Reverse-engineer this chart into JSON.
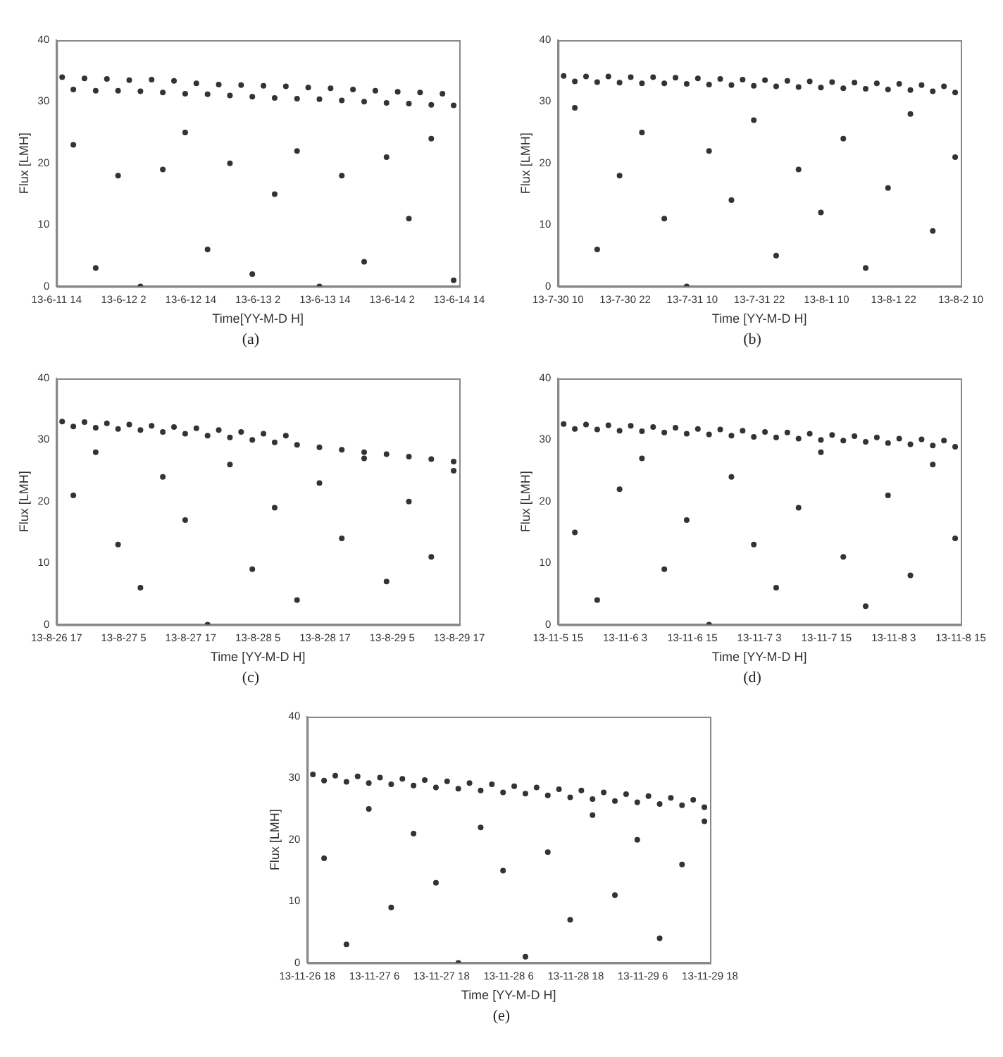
{
  "chart_data": [
    {
      "type": "scatter",
      "xlabel": "Time[YY-M-D H]",
      "ylabel": "Flux [LMH]",
      "annotations": [
        "(a)"
      ],
      "marker": "circle",
      "xlim": [
        "--06-11T14:00",
        "--06-14T14:00"
      ],
      "xticks": [
        {
          "value": "--06-11T14:00",
          "label": "13-6-11 14"
        },
        {
          "value": "--06-12T02:00",
          "label": "13-6-12 2"
        },
        {
          "value": "--06-12T14:00",
          "label": "13-6-12 14"
        },
        {
          "value": "--06-13T02:00",
          "label": "13-6-13 2"
        },
        {
          "value": "--06-13T14:00",
          "label": "13-6-13 14"
        },
        {
          "value": "--06-14T02:00",
          "label": "13-6-14 2"
        },
        {
          "value": "--06-14T14:00",
          "label": "13-6-14 14"
        }
      ],
      "ylim": [
        0,
        40
      ],
      "yticks": [
        0,
        10,
        20,
        30,
        40
      ],
      "series": [
        {
          "color": "#333333",
          "x": [
            "--06-11T15:00",
            "--06-11T19:00",
            "--06-11T23:00",
            "--06-12T03:00",
            "--06-12T07:00",
            "--06-12T11:00",
            "--06-12T15:00",
            "--06-12T19:00",
            "--06-12T23:00",
            "--06-13T03:00",
            "--06-13T07:00",
            "--06-13T11:00",
            "--06-13T15:00",
            "--06-13T19:00",
            "--06-13T23:00",
            "--06-14T03:00",
            "--06-14T07:00",
            "--06-14T11:00"
          ],
          "values": [
            34,
            33.8,
            33.7,
            33.5,
            33.6,
            33.4,
            33,
            32.8,
            32.7,
            32.6,
            32.5,
            32.3,
            32.2,
            32,
            31.8,
            31.6,
            31.5,
            31.3
          ]
        },
        {
          "color": "#333333",
          "x": [
            "--06-11T17:00",
            "--06-11T21:00",
            "--06-12T01:00",
            "--06-12T05:00",
            "--06-12T09:00",
            "--06-12T13:00",
            "--06-12T17:00",
            "--06-12T21:00",
            "--06-13T01:00",
            "--06-13T05:00",
            "--06-13T09:00",
            "--06-13T13:00",
            "--06-13T17:00",
            "--06-13T21:00",
            "--06-14T01:00",
            "--06-14T05:00",
            "--06-14T09:00",
            "--06-14T13:00"
          ],
          "values": [
            32,
            31.8,
            31.8,
            31.7,
            31.5,
            31.3,
            31.2,
            31,
            30.8,
            30.6,
            30.5,
            30.4,
            30.2,
            30,
            29.8,
            29.7,
            29.5,
            29.4
          ]
        },
        {
          "color": "#333333",
          "x": [
            "--06-11T17:00",
            "--06-11T21:00",
            "--06-12T01:00",
            "--06-12T05:00",
            "--06-12T09:00",
            "--06-12T13:00",
            "--06-12T17:00",
            "--06-12T21:00",
            "--06-13T01:00",
            "--06-13T05:00",
            "--06-13T09:00",
            "--06-13T13:00",
            "--06-13T17:00",
            "--06-13T21:00",
            "--06-14T01:00",
            "--06-14T05:00",
            "--06-14T09:00",
            "--06-14T13:00"
          ],
          "values": [
            23,
            3,
            18,
            0,
            19,
            25,
            6,
            20,
            2,
            15,
            22,
            0,
            18,
            4,
            21,
            11,
            24,
            1
          ]
        }
      ]
    },
    {
      "type": "scatter",
      "xlabel": "Time [YY-M-D H]",
      "ylabel": "Flux [LMH]",
      "annotations": [
        "(b)"
      ],
      "marker": "circle",
      "xlim": [
        "--07-30T10:00",
        "--08-02T10:00"
      ],
      "xticks": [
        {
          "value": "--07-30T10:00",
          "label": "13-7-30 10"
        },
        {
          "value": "--07-30T22:00",
          "label": "13-7-30 22"
        },
        {
          "value": "--07-31T10:00",
          "label": "13-7-31 10"
        },
        {
          "value": "--07-31T22:00",
          "label": "13-7-31 22"
        },
        {
          "value": "--08-01T10:00",
          "label": "13-8-1 10"
        },
        {
          "value": "--08-01T22:00",
          "label": "13-8-1 22"
        },
        {
          "value": "--08-02T10:00",
          "label": "13-8-2 10"
        }
      ],
      "ylim": [
        0,
        40
      ],
      "yticks": [
        0,
        10,
        20,
        30,
        40
      ],
      "series": [
        {
          "color": "#333333",
          "x": [
            "--07-30T11:00",
            "--07-30T15:00",
            "--07-30T19:00",
            "--07-30T23:00",
            "--07-31T03:00",
            "--07-31T07:00",
            "--07-31T11:00",
            "--07-31T15:00",
            "--07-31T19:00",
            "--07-31T23:00",
            "--08-01T03:00",
            "--08-01T07:00",
            "--08-01T11:00",
            "--08-01T15:00",
            "--08-01T19:00",
            "--08-01T23:00",
            "--08-02T03:00",
            "--08-02T07:00"
          ],
          "values": [
            34.2,
            34.1,
            34.1,
            34,
            34,
            33.9,
            33.8,
            33.7,
            33.6,
            33.5,
            33.4,
            33.3,
            33.2,
            33.1,
            33,
            32.9,
            32.7,
            32.5
          ]
        },
        {
          "color": "#333333",
          "x": [
            "--07-30T13:00",
            "--07-30T17:00",
            "--07-30T21:00",
            "--07-31T01:00",
            "--07-31T05:00",
            "--07-31T09:00",
            "--07-31T13:00",
            "--07-31T17:00",
            "--07-31T21:00",
            "--08-01T01:00",
            "--08-01T05:00",
            "--08-01T09:00",
            "--08-01T13:00",
            "--08-01T17:00",
            "--08-01T21:00",
            "--08-02T01:00",
            "--08-02T05:00",
            "--08-02T09:00"
          ],
          "values": [
            33.3,
            33.2,
            33.1,
            33,
            33,
            32.9,
            32.8,
            32.7,
            32.6,
            32.5,
            32.4,
            32.3,
            32.2,
            32.1,
            32,
            31.9,
            31.7,
            31.5
          ]
        },
        {
          "color": "#333333",
          "x": [
            "--07-30T13:00",
            "--07-30T17:00",
            "--07-30T21:00",
            "--07-31T01:00",
            "--07-31T05:00",
            "--07-31T09:00",
            "--07-31T13:00",
            "--07-31T17:00",
            "--07-31T21:00",
            "--08-01T01:00",
            "--08-01T05:00",
            "--08-01T09:00",
            "--08-01T13:00",
            "--08-01T17:00",
            "--08-01T21:00",
            "--08-02T01:00",
            "--08-02T05:00",
            "--08-02T09:00"
          ],
          "values": [
            29,
            6,
            18,
            25,
            11,
            0,
            22,
            14,
            27,
            5,
            19,
            12,
            24,
            3,
            16,
            28,
            9,
            21
          ]
        }
      ]
    },
    {
      "type": "scatter",
      "xlabel": "Time [YY-M-D H]",
      "ylabel": "Flux [LMH]",
      "annotations": [
        "(c)"
      ],
      "marker": "circle",
      "xlim": [
        "--08-26T17:00",
        "--08-29T17:00"
      ],
      "xticks": [
        {
          "value": "--08-26T17:00",
          "label": "13-8-26 17"
        },
        {
          "value": "--08-27T05:00",
          "label": "13-8-27 5"
        },
        {
          "value": "--08-27T17:00",
          "label": "13-8-27 17"
        },
        {
          "value": "--08-28T05:00",
          "label": "13-8-28 5"
        },
        {
          "value": "--08-28T17:00",
          "label": "13-8-28 17"
        },
        {
          "value": "--08-29T05:00",
          "label": "13-8-29 5"
        },
        {
          "value": "--08-29T17:00",
          "label": "13-8-29 17"
        }
      ],
      "ylim": [
        0,
        40
      ],
      "yticks": [
        0,
        10,
        20,
        30,
        40
      ],
      "series": [
        {
          "color": "#333333",
          "x": [
            "--08-26T18:00",
            "--08-26T22:00",
            "--08-27T02:00",
            "--08-27T06:00",
            "--08-27T10:00",
            "--08-27T14:00",
            "--08-27T18:00",
            "--08-27T22:00",
            "--08-28T02:00",
            "--08-28T06:00",
            "--08-28T10:00"
          ],
          "values": [
            33,
            32.9,
            32.7,
            32.5,
            32.3,
            32.1,
            31.9,
            31.6,
            31.3,
            31,
            30.7
          ]
        },
        {
          "color": "#333333",
          "x": [
            "--08-26T20:00",
            "--08-27T00:00",
            "--08-27T04:00",
            "--08-27T08:00",
            "--08-27T12:00",
            "--08-27T16:00",
            "--08-27T20:00",
            "--08-28T00:00",
            "--08-28T04:00",
            "--08-28T08:00",
            "--08-28T12:00",
            "--08-28T16:00",
            "--08-28T20:00",
            "--08-29T00:00",
            "--08-29T04:00",
            "--08-29T08:00",
            "--08-29T12:00",
            "--08-29T16:00"
          ],
          "values": [
            32.2,
            32,
            31.8,
            31.6,
            31.3,
            31,
            30.7,
            30.4,
            30,
            29.6,
            29.2,
            28.8,
            28.4,
            28,
            27.7,
            27.3,
            26.9,
            26.5
          ]
        },
        {
          "color": "#333333",
          "x": [
            "--08-26T20:00",
            "--08-27T00:00",
            "--08-27T04:00",
            "--08-27T08:00",
            "--08-27T12:00",
            "--08-27T16:00",
            "--08-27T20:00",
            "--08-28T00:00",
            "--08-28T04:00",
            "--08-28T08:00",
            "--08-28T12:00",
            "--08-28T16:00",
            "--08-28T20:00",
            "--08-29T00:00",
            "--08-29T04:00",
            "--08-29T08:00",
            "--08-29T12:00",
            "--08-29T16:00"
          ],
          "values": [
            21,
            28,
            13,
            6,
            24,
            17,
            0,
            26,
            9,
            19,
            4,
            23,
            14,
            27,
            7,
            20,
            11,
            25
          ]
        }
      ]
    },
    {
      "type": "scatter",
      "xlabel": "Time [YY-M-D H]",
      "ylabel": "Flux [LMH]",
      "annotations": [
        "(d)"
      ],
      "marker": "circle",
      "xlim": [
        "--11-05T15:00",
        "--11-08T15:00"
      ],
      "xticks": [
        {
          "value": "--11-05T15:00",
          "label": "13-11-5 15"
        },
        {
          "value": "--11-06T03:00",
          "label": "13-11-6 3"
        },
        {
          "value": "--11-06T15:00",
          "label": "13-11-6 15"
        },
        {
          "value": "--11-07T03:00",
          "label": "13-11-7 3"
        },
        {
          "value": "--11-07T15:00",
          "label": "13-11-7 15"
        },
        {
          "value": "--11-08T03:00",
          "label": "13-11-8 3"
        },
        {
          "value": "--11-08T15:00",
          "label": "13-11-8 15"
        }
      ],
      "ylim": [
        0,
        40
      ],
      "yticks": [
        0,
        10,
        20,
        30,
        40
      ],
      "series": [
        {
          "color": "#333333",
          "x": [
            "--11-05T16:00",
            "--11-05T20:00",
            "--11-06T00:00",
            "--11-06T04:00",
            "--11-06T08:00",
            "--11-06T12:00",
            "--11-06T16:00",
            "--11-06T20:00",
            "--11-07T00:00",
            "--11-07T04:00",
            "--11-07T08:00",
            "--11-07T12:00",
            "--11-07T16:00",
            "--11-07T20:00",
            "--11-08T00:00",
            "--11-08T04:00",
            "--11-08T08:00",
            "--11-08T12:00"
          ],
          "values": [
            32.6,
            32.5,
            32.4,
            32.3,
            32.1,
            32,
            31.8,
            31.7,
            31.5,
            31.3,
            31.2,
            31,
            30.8,
            30.6,
            30.4,
            30.2,
            30.1,
            29.9
          ]
        },
        {
          "color": "#333333",
          "x": [
            "--11-05T18:00",
            "--11-05T22:00",
            "--11-06T02:00",
            "--11-06T06:00",
            "--11-06T10:00",
            "--11-06T14:00",
            "--11-06T18:00",
            "--11-06T22:00",
            "--11-07T02:00",
            "--11-07T06:00",
            "--11-07T10:00",
            "--11-07T14:00",
            "--11-07T18:00",
            "--11-07T22:00",
            "--11-08T02:00",
            "--11-08T06:00",
            "--11-08T10:00",
            "--11-08T14:00"
          ],
          "values": [
            31.8,
            31.7,
            31.5,
            31.4,
            31.2,
            31,
            30.9,
            30.7,
            30.5,
            30.4,
            30.2,
            30,
            29.9,
            29.7,
            29.5,
            29.3,
            29.1,
            28.9
          ]
        },
        {
          "color": "#333333",
          "x": [
            "--11-05T18:00",
            "--11-05T22:00",
            "--11-06T02:00",
            "--11-06T06:00",
            "--11-06T10:00",
            "--11-06T14:00",
            "--11-06T18:00",
            "--11-06T22:00",
            "--11-07T02:00",
            "--11-07T06:00",
            "--11-07T10:00",
            "--11-07T14:00",
            "--11-07T18:00",
            "--11-07T22:00",
            "--11-08T02:00",
            "--11-08T06:00",
            "--11-08T10:00",
            "--11-08T14:00"
          ],
          "values": [
            15,
            4,
            22,
            27,
            9,
            17,
            0,
            24,
            13,
            6,
            19,
            28,
            11,
            3,
            21,
            8,
            26,
            14
          ]
        }
      ]
    },
    {
      "type": "scatter",
      "xlabel": "Time [YY-M-D H]",
      "ylabel": "Flux [LMH]",
      "annotations": [
        "(e)"
      ],
      "marker": "circle",
      "xlim": [
        "--11-26T18:00",
        "--11-29T18:00"
      ],
      "xticks": [
        {
          "value": "--11-26T18:00",
          "label": "13-11-26 18"
        },
        {
          "value": "--11-27T06:00",
          "label": "13-11-27 6"
        },
        {
          "value": "--11-27T18:00",
          "label": "13-11-27 18"
        },
        {
          "value": "--11-28T06:00",
          "label": "13-11-28 6"
        },
        {
          "value": "--11-28T18:00",
          "label": "13-11-28 18"
        },
        {
          "value": "--11-29T06:00",
          "label": "13-11-29 6"
        },
        {
          "value": "--11-29T18:00",
          "label": "13-11-29 18"
        }
      ],
      "ylim": [
        0,
        40
      ],
      "yticks": [
        0,
        10,
        20,
        30,
        40
      ],
      "series": [
        {
          "color": "#333333",
          "x": [
            "--11-26T19:00",
            "--11-26T23:00",
            "--11-27T03:00",
            "--11-27T07:00",
            "--11-27T11:00",
            "--11-27T15:00",
            "--11-27T19:00",
            "--11-27T23:00",
            "--11-28T03:00",
            "--11-28T07:00",
            "--11-28T11:00",
            "--11-28T15:00",
            "--11-28T19:00",
            "--11-28T23:00",
            "--11-29T03:00",
            "--11-29T07:00",
            "--11-29T11:00",
            "--11-29T15:00"
          ],
          "values": [
            30.6,
            30.4,
            30.3,
            30.1,
            29.9,
            29.7,
            29.5,
            29.2,
            29,
            28.7,
            28.5,
            28.2,
            28,
            27.7,
            27.4,
            27.1,
            26.8,
            26.5
          ]
        },
        {
          "color": "#333333",
          "x": [
            "--11-26T21:00",
            "--11-27T01:00",
            "--11-27T05:00",
            "--11-27T09:00",
            "--11-27T13:00",
            "--11-27T17:00",
            "--11-27T21:00",
            "--11-28T01:00",
            "--11-28T05:00",
            "--11-28T09:00",
            "--11-28T13:00",
            "--11-28T17:00",
            "--11-28T21:00",
            "--11-29T01:00",
            "--11-29T05:00",
            "--11-29T09:00",
            "--11-29T13:00",
            "--11-29T17:00"
          ],
          "values": [
            29.6,
            29.4,
            29.2,
            29,
            28.8,
            28.5,
            28.3,
            28,
            27.7,
            27.5,
            27.2,
            26.9,
            26.6,
            26.3,
            26.1,
            25.8,
            25.6,
            25.3
          ]
        },
        {
          "color": "#333333",
          "x": [
            "--11-26T21:00",
            "--11-27T01:00",
            "--11-27T05:00",
            "--11-27T09:00",
            "--11-27T13:00",
            "--11-27T17:00",
            "--11-27T21:00",
            "--11-28T01:00",
            "--11-28T05:00",
            "--11-28T09:00",
            "--11-28T13:00",
            "--11-28T17:00",
            "--11-28T21:00",
            "--11-29T01:00",
            "--11-29T05:00",
            "--11-29T09:00",
            "--11-29T13:00",
            "--11-29T17:00"
          ],
          "values": [
            17,
            3,
            25,
            9,
            21,
            13,
            0,
            22,
            15,
            1,
            18,
            7,
            24,
            11,
            20,
            4,
            16,
            23
          ]
        }
      ]
    }
  ]
}
